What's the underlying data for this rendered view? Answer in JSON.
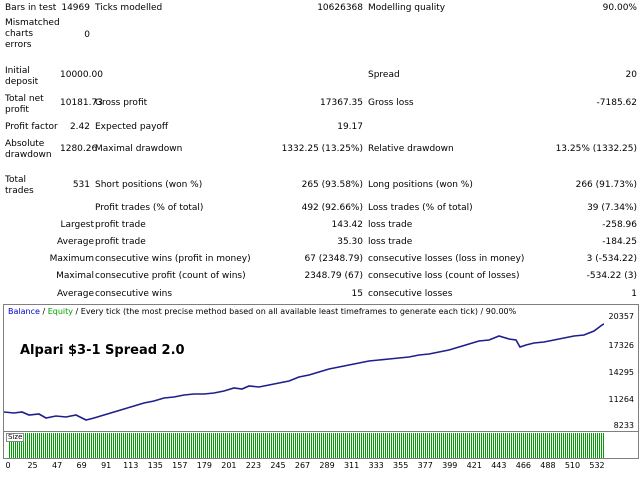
{
  "report": {
    "r1": {
      "l1": "Bars in test",
      "v1": "14969",
      "l2": "Ticks modelled",
      "v2": "10626368",
      "l3": "Modelling quality",
      "v3": "90.00%"
    },
    "r2": {
      "l1": "Mismatched charts errors",
      "v1": "0"
    },
    "r3": {
      "l1": "Initial deposit",
      "v1": "10000.00",
      "l3": "Spread",
      "v3": "20"
    },
    "r4": {
      "l1": "Total net profit",
      "v1": "10181.73",
      "l2": "Gross profit",
      "v2": "17367.35",
      "l3": "Gross loss",
      "v3": "-7185.62"
    },
    "r5": {
      "l1": "Profit factor",
      "v1": "2.42",
      "l2": "Expected payoff",
      "v2": "19.17"
    },
    "r6": {
      "l1": "Absolute drawdown",
      "v1": "1280.26",
      "l2": "Maximal drawdown",
      "v2": "1332.25 (13.25%)",
      "l3": "Relative drawdown",
      "v3": "13.25% (1332.25)"
    },
    "r7": {
      "l1": "Total trades",
      "v1": "531",
      "l2": "Short positions (won %)",
      "v2": "265 (93.58%)",
      "l3": "Long positions (won %)",
      "v3": "266 (91.73%)"
    },
    "r8": {
      "l2": "Profit trades (% of total)",
      "v2": "492 (92.66%)",
      "l3": "Loss trades (% of total)",
      "v3": "39 (7.34%)"
    },
    "r9": {
      "pre": "Largest",
      "l2": "profit trade",
      "v2": "143.42",
      "l3": "loss trade",
      "v3": "-258.96"
    },
    "r10": {
      "pre": "Average",
      "l2": "profit trade",
      "v2": "35.30",
      "l3": "loss trade",
      "v3": "-184.25"
    },
    "r11": {
      "pre": "Maximum",
      "l2": "consecutive wins (profit in money)",
      "v2": "67 (2348.79)",
      "l3": "consecutive losses (loss in money)",
      "v3": "3 (-534.22)"
    },
    "r12": {
      "pre": "Maximal",
      "l2": "consecutive profit (count of wins)",
      "v2": "2348.79 (67)",
      "l3": "consecutive loss (count of losses)",
      "v3": "-534.22 (3)"
    },
    "r13": {
      "pre": "Average",
      "l2": "consecutive wins",
      "v2": "15",
      "l3": "consecutive losses",
      "v3": "1"
    }
  },
  "chart": {
    "header_balance": "Balance",
    "header_sep1": " / ",
    "header_equity": "Equity",
    "header_rest": " / Every tick (the most precise method based on all available least timeframes to generate each tick) / 90.00%",
    "title": "Alpari $3-1  Spread 2.0",
    "y_labels": [
      "20357",
      "17326",
      "14295",
      "11264",
      "8233"
    ],
    "line_color": "#1e1e8c",
    "bar_color": "#00a000"
  },
  "volume": {
    "label": "Size"
  },
  "x_labels": [
    "0",
    "25",
    "47",
    "69",
    "91",
    "113",
    "135",
    "157",
    "179",
    "201",
    "223",
    "245",
    "267",
    "289",
    "311",
    "333",
    "355",
    "377",
    "399",
    "421",
    "443",
    "466",
    "488",
    "510",
    "532"
  ]
}
